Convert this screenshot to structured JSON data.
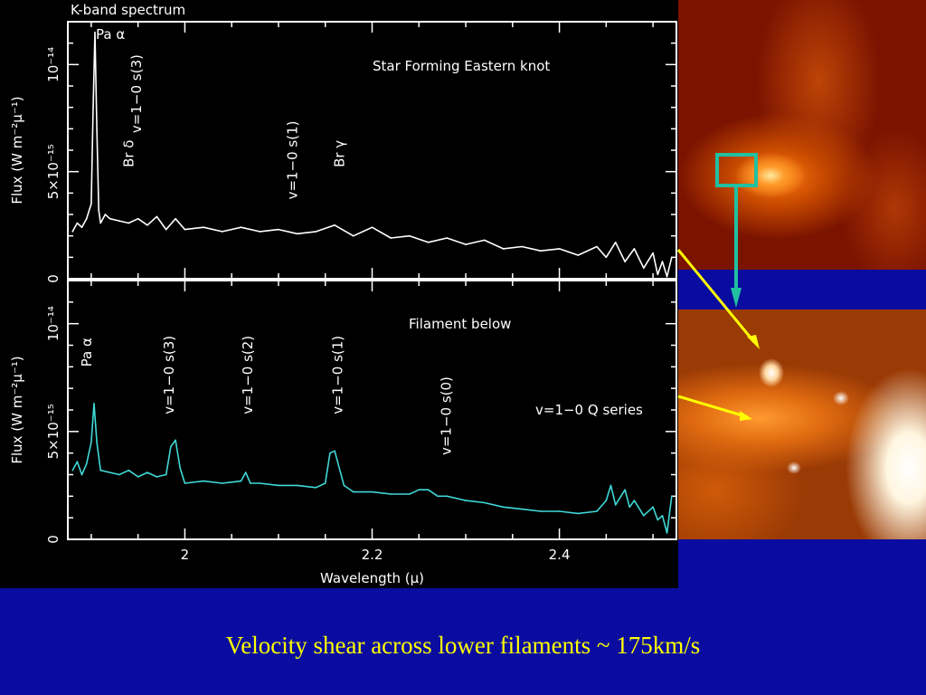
{
  "caption": "Velocity shear across lower filaments ~ 175km/s",
  "colors": {
    "background": "#0a0ca0",
    "plot_background": "#000000",
    "top_series": "#ffffff",
    "bottom_series": "#40d8d8",
    "caption": "#ffff00",
    "box_and_arrow": "#20c0a0",
    "pointer_lines": "#ffff00"
  },
  "chart_data": [
    {
      "type": "line",
      "title": "K-band spectrum",
      "annotation": "Star Forming Eastern knot",
      "xlabel": "",
      "ylabel": "Flux (W m⁻²μ⁻¹)",
      "xlim": [
        1.875,
        2.525
      ],
      "ylim": [
        0,
        1.2e-14
      ],
      "y_ticks": [
        {
          "value": 0,
          "label": "0"
        },
        {
          "value": 5e-15,
          "label": "5×10⁻¹⁵"
        },
        {
          "value": 1e-14,
          "label": "10⁻¹⁴"
        }
      ],
      "line_labels": [
        {
          "text": "Pa α",
          "x": 1.905,
          "y": 1.12e-14,
          "rotate": false
        },
        {
          "text": "Br δ",
          "x": 1.945,
          "y": 5.2e-15,
          "rotate": true
        },
        {
          "text": "v=1−0 s(3)",
          "x": 1.953,
          "y": 6.8e-15,
          "rotate": true
        },
        {
          "text": "v=1−0 s(1)",
          "x": 2.12,
          "y": 3.7e-15,
          "rotate": true
        },
        {
          "text": "Br γ",
          "x": 2.17,
          "y": 5.2e-15,
          "rotate": true
        }
      ],
      "series": [
        {
          "x": [
            1.88,
            1.885,
            1.89,
            1.895,
            1.9,
            1.902,
            1.904,
            1.906,
            1.908,
            1.91,
            1.915,
            1.92,
            1.93,
            1.94,
            1.95,
            1.96,
            1.97,
            1.98,
            1.99,
            2.0,
            2.02,
            2.04,
            2.06,
            2.08,
            2.1,
            2.12,
            2.14,
            2.16,
            2.18,
            2.2,
            2.22,
            2.24,
            2.26,
            2.28,
            2.3,
            2.32,
            2.34,
            2.36,
            2.38,
            2.4,
            2.42,
            2.44,
            2.45,
            2.46,
            2.47,
            2.48,
            2.49,
            2.5,
            2.505,
            2.51,
            2.515,
            2.52
          ],
          "y": [
            2.2e-15,
            2.6e-15,
            2.4e-15,
            2.8e-15,
            3.5e-15,
            8e-15,
            1.15e-14,
            7e-15,
            3.2e-15,
            2.6e-15,
            3e-15,
            2.8e-15,
            2.7e-15,
            2.6e-15,
            2.8e-15,
            2.5e-15,
            2.9e-15,
            2.3e-15,
            2.8e-15,
            2.3e-15,
            2.4e-15,
            2.2e-15,
            2.4e-15,
            2.2e-15,
            2.3e-15,
            2.1e-15,
            2.2e-15,
            2.5e-15,
            2e-15,
            2.4e-15,
            1.9e-15,
            2e-15,
            1.7e-15,
            1.9e-15,
            1.6e-15,
            1.8e-15,
            1.4e-15,
            1.5e-15,
            1.3e-15,
            1.4e-15,
            1.1e-15,
            1.5e-15,
            1e-15,
            1.7e-15,
            8e-16,
            1.4e-15,
            5e-16,
            1.2e-15,
            2e-16,
            8e-16,
            1e-16,
            1e-15
          ]
        }
      ]
    },
    {
      "type": "line",
      "title": "",
      "annotation": "Filament below",
      "annotation2": "v=1−0 Q series",
      "xlabel": "Wavelength (μ)",
      "ylabel": "Flux (W m⁻²μ⁻¹)",
      "xlim": [
        1.875,
        2.525
      ],
      "ylim": [
        0,
        1.2e-14
      ],
      "y_ticks": [
        {
          "value": 0,
          "label": "0"
        },
        {
          "value": 5e-15,
          "label": "5×10⁻¹⁵"
        },
        {
          "value": 1e-14,
          "label": "10⁻¹⁴"
        }
      ],
      "x_ticks": [
        {
          "value": 2.0,
          "label": "2"
        },
        {
          "value": 2.2,
          "label": "2.2"
        },
        {
          "value": 2.4,
          "label": "2.4"
        }
      ],
      "line_labels": [
        {
          "text": "Pa α",
          "x": 1.9,
          "y": 8e-15,
          "rotate": true
        },
        {
          "text": "v=1−0 s(3)",
          "x": 1.988,
          "y": 5.8e-15,
          "rotate": true
        },
        {
          "text": "v=1−0 s(2)",
          "x": 2.072,
          "y": 5.8e-15,
          "rotate": true
        },
        {
          "text": "v=1−0 s(1)",
          "x": 2.168,
          "y": 5.8e-15,
          "rotate": true
        },
        {
          "text": "v=1−0 s(0)",
          "x": 2.284,
          "y": 3.9e-15,
          "rotate": true
        }
      ],
      "series": [
        {
          "x": [
            1.88,
            1.885,
            1.89,
            1.895,
            1.9,
            1.903,
            1.906,
            1.91,
            1.92,
            1.93,
            1.94,
            1.95,
            1.96,
            1.97,
            1.98,
            1.985,
            1.99,
            1.995,
            2.0,
            2.02,
            2.04,
            2.06,
            2.065,
            2.07,
            2.08,
            2.1,
            2.12,
            2.14,
            2.15,
            2.155,
            2.16,
            2.17,
            2.18,
            2.2,
            2.22,
            2.24,
            2.25,
            2.26,
            2.27,
            2.28,
            2.3,
            2.32,
            2.34,
            2.36,
            2.38,
            2.4,
            2.42,
            2.44,
            2.45,
            2.455,
            2.46,
            2.47,
            2.475,
            2.48,
            2.49,
            2.5,
            2.505,
            2.51,
            2.515,
            2.52
          ],
          "y": [
            3.2e-15,
            3.6e-15,
            3e-15,
            3.5e-15,
            4.5e-15,
            6.3e-15,
            4.5e-15,
            3.2e-15,
            3.1e-15,
            3e-15,
            3.2e-15,
            2.9e-15,
            3.1e-15,
            2.9e-15,
            3e-15,
            4.3e-15,
            4.6e-15,
            3.3e-15,
            2.6e-15,
            2.7e-15,
            2.6e-15,
            2.7e-15,
            3.1e-15,
            2.6e-15,
            2.6e-15,
            2.5e-15,
            2.5e-15,
            2.4e-15,
            2.6e-15,
            4e-15,
            4.1e-15,
            2.5e-15,
            2.2e-15,
            2.2e-15,
            2.1e-15,
            2.1e-15,
            2.3e-15,
            2.3e-15,
            2e-15,
            2e-15,
            1.8e-15,
            1.7e-15,
            1.5e-15,
            1.4e-15,
            1.3e-15,
            1.3e-15,
            1.2e-15,
            1.3e-15,
            1.8e-15,
            2.5e-15,
            1.6e-15,
            2.3e-15,
            1.5e-15,
            1.8e-15,
            1.1e-15,
            1.5e-15,
            9e-16,
            1.1e-15,
            3e-16,
            2e-15
          ]
        }
      ]
    }
  ]
}
